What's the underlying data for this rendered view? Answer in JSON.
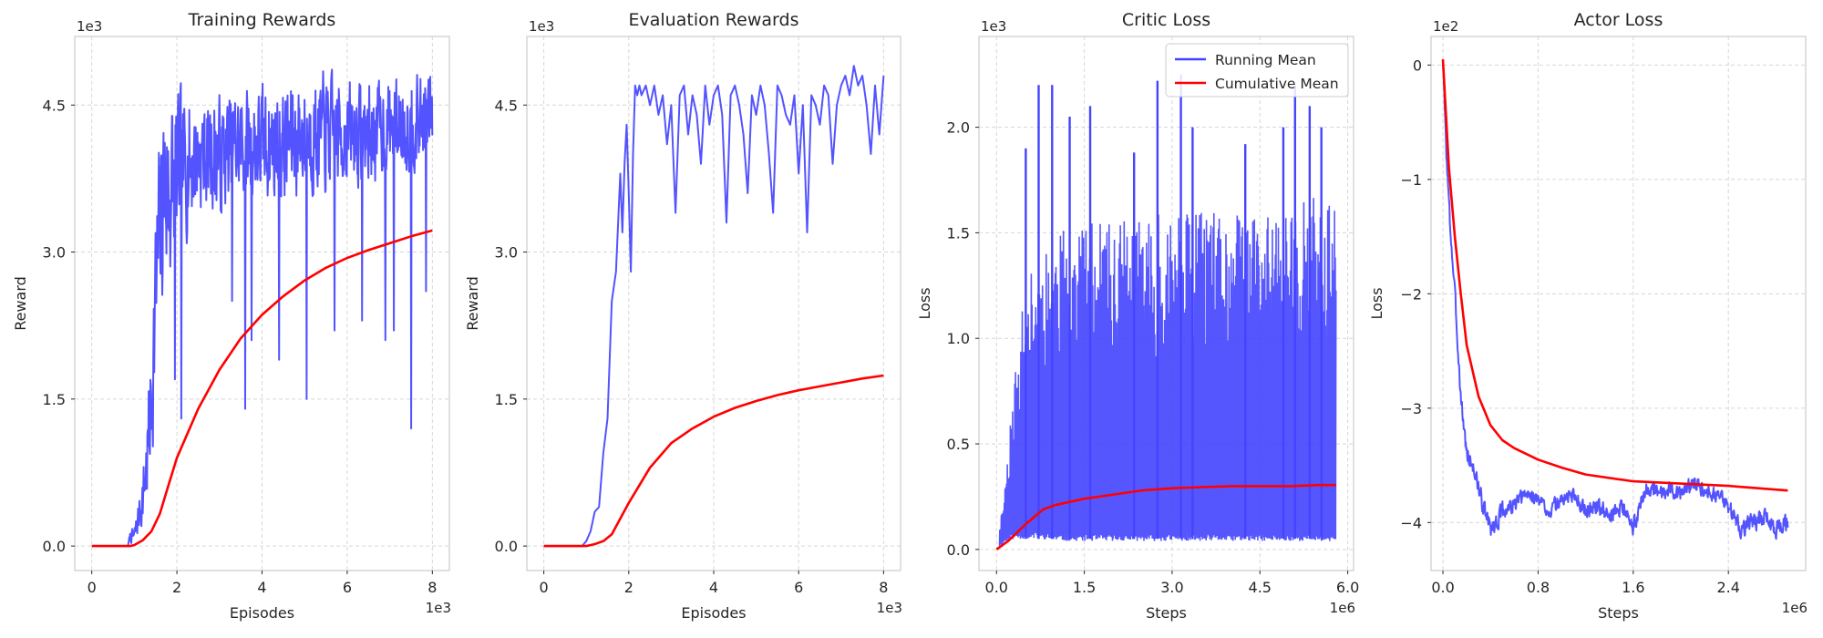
{
  "colors": {
    "running": "#4444ff",
    "cumulative": "#ff0000"
  },
  "legend": {
    "running_label": "Running Mean",
    "cumulative_label": "Cumulative Mean"
  },
  "chart_data": [
    {
      "type": "line",
      "title": "Training Rewards",
      "xlabel": "Episodes",
      "ylabel": "Reward",
      "x_scale_label": "1e3",
      "y_scale_label": "1e3",
      "xlim": [
        -0.4,
        8.4
      ],
      "ylim": [
        -0.25,
        5.2
      ],
      "xticks": [
        {
          "v": 0,
          "label": "0"
        },
        {
          "v": 2,
          "label": "2"
        },
        {
          "v": 4,
          "label": "4"
        },
        {
          "v": 6,
          "label": "6"
        },
        {
          "v": 8,
          "label": "8"
        }
      ],
      "yticks": [
        {
          "v": 0,
          "label": "0.0"
        },
        {
          "v": 1.5,
          "label": "1.5"
        },
        {
          "v": 3.0,
          "label": "3.0"
        },
        {
          "v": 4.5,
          "label": "4.5"
        }
      ],
      "grid": true,
      "legend": false,
      "series": [
        {
          "key": "running",
          "style": "noisy",
          "x": [
            0.85,
            0.9,
            1.0,
            1.1,
            1.2,
            1.3,
            1.4,
            1.5,
            1.6,
            1.7,
            1.8,
            1.9,
            2.0,
            2.2,
            2.5,
            3.0,
            3.5,
            4.0,
            4.5,
            5.0,
            5.5,
            6.0,
            6.5,
            7.0,
            7.5,
            8.0
          ],
          "y": [
            0.0,
            0.1,
            0.1,
            0.3,
            0.5,
            0.9,
            1.5,
            2.5,
            3.2,
            3.7,
            3.6,
            3.7,
            3.8,
            3.9,
            4.0,
            4.0,
            4.1,
            4.1,
            4.1,
            4.2,
            4.2,
            4.2,
            4.2,
            4.3,
            4.3,
            4.4
          ],
          "amp": [
            0.0,
            0.05,
            0.08,
            0.15,
            0.25,
            0.4,
            0.6,
            0.8,
            0.9,
            0.9,
            0.9,
            0.8,
            0.7,
            0.6,
            0.5,
            0.5,
            0.5,
            0.5,
            0.5,
            0.5,
            0.5,
            0.45,
            0.45,
            0.4,
            0.4,
            0.4
          ],
          "spikes": [
            [
              1.95,
              1.7
            ],
            [
              2.1,
              1.3
            ],
            [
              3.05,
              3.4
            ],
            [
              3.3,
              2.5
            ],
            [
              3.6,
              1.4
            ],
            [
              3.75,
              2.1
            ],
            [
              4.4,
              1.9
            ],
            [
              5.05,
              1.5
            ],
            [
              5.7,
              2.2
            ],
            [
              6.35,
              2.3
            ],
            [
              6.9,
              2.1
            ],
            [
              7.1,
              2.2
            ],
            [
              7.5,
              1.2
            ],
            [
              7.85,
              2.6
            ]
          ],
          "hi": 4.95,
          "xmin": 0.85,
          "xmax": 8.0,
          "n": 720,
          "seed": 7
        },
        {
          "key": "cumulative",
          "style": "smooth",
          "x": [
            0,
            0.9,
            1.0,
            1.2,
            1.4,
            1.6,
            1.8,
            2.0,
            2.5,
            3.0,
            3.5,
            4.0,
            4.5,
            5.0,
            5.5,
            6.0,
            6.5,
            7.0,
            7.5,
            8.0
          ],
          "y": [
            0,
            0,
            0.01,
            0.06,
            0.15,
            0.33,
            0.62,
            0.9,
            1.4,
            1.8,
            2.12,
            2.36,
            2.55,
            2.71,
            2.84,
            2.94,
            3.02,
            3.09,
            3.16,
            3.22
          ]
        }
      ]
    },
    {
      "type": "line",
      "title": "Evaluation Rewards",
      "xlabel": "Episodes",
      "ylabel": "Reward",
      "x_scale_label": "1e3",
      "y_scale_label": "1e3",
      "xlim": [
        -0.4,
        8.4
      ],
      "ylim": [
        -0.25,
        5.2
      ],
      "xticks": [
        {
          "v": 0,
          "label": "0"
        },
        {
          "v": 2,
          "label": "2"
        },
        {
          "v": 4,
          "label": "4"
        },
        {
          "v": 6,
          "label": "6"
        },
        {
          "v": 8,
          "label": "8"
        }
      ],
      "yticks": [
        {
          "v": 0,
          "label": "0.0"
        },
        {
          "v": 1.5,
          "label": "1.5"
        },
        {
          "v": 3.0,
          "label": "3.0"
        },
        {
          "v": 4.5,
          "label": "4.5"
        }
      ],
      "grid": true,
      "legend": false,
      "series": [
        {
          "key": "running",
          "style": "polyline",
          "x": [
            0,
            0.9,
            1.0,
            1.1,
            1.2,
            1.3,
            1.4,
            1.5,
            1.6,
            1.7,
            1.8,
            1.85,
            1.9,
            1.95,
            2.0,
            2.05,
            2.1,
            2.15,
            2.2,
            2.25,
            2.3,
            2.4,
            2.5,
            2.6,
            2.7,
            2.8,
            2.9,
            3.0,
            3.1,
            3.2,
            3.3,
            3.4,
            3.5,
            3.6,
            3.7,
            3.8,
            3.9,
            4.0,
            4.1,
            4.2,
            4.3,
            4.4,
            4.5,
            4.6,
            4.7,
            4.8,
            4.9,
            5.0,
            5.1,
            5.2,
            5.3,
            5.4,
            5.5,
            5.6,
            5.7,
            5.8,
            5.9,
            6.0,
            6.1,
            6.2,
            6.3,
            6.4,
            6.5,
            6.6,
            6.7,
            6.8,
            6.9,
            7.0,
            7.1,
            7.2,
            7.3,
            7.4,
            7.5,
            7.6,
            7.7,
            7.8,
            7.9,
            8.0
          ],
          "y": [
            0,
            0,
            0.05,
            0.15,
            0.35,
            0.4,
            0.95,
            1.3,
            2.5,
            2.8,
            3.8,
            3.2,
            3.9,
            4.3,
            3.6,
            2.8,
            4.0,
            4.7,
            4.6,
            4.7,
            4.6,
            4.7,
            4.5,
            4.7,
            4.4,
            4.6,
            4.1,
            4.5,
            3.4,
            4.6,
            4.7,
            4.2,
            4.6,
            4.4,
            3.9,
            4.7,
            4.3,
            4.6,
            4.7,
            4.4,
            3.3,
            4.6,
            4.7,
            4.5,
            4.2,
            3.6,
            4.6,
            4.4,
            4.7,
            4.5,
            4.0,
            3.4,
            4.7,
            4.6,
            4.4,
            4.3,
            4.6,
            3.8,
            4.5,
            3.2,
            4.6,
            4.5,
            4.3,
            4.7,
            4.6,
            3.9,
            4.5,
            4.7,
            4.8,
            4.6,
            4.9,
            4.7,
            4.8,
            4.5,
            4.0,
            4.7,
            4.2,
            4.8
          ]
        },
        {
          "key": "cumulative",
          "style": "smooth",
          "x": [
            0,
            1.0,
            1.2,
            1.4,
            1.6,
            1.8,
            2.0,
            2.5,
            3.0,
            3.5,
            4.0,
            4.5,
            5.0,
            5.5,
            6.0,
            6.5,
            7.0,
            7.5,
            8.0
          ],
          "y": [
            0,
            0,
            0.02,
            0.05,
            0.12,
            0.28,
            0.44,
            0.8,
            1.05,
            1.2,
            1.32,
            1.41,
            1.48,
            1.54,
            1.59,
            1.63,
            1.67,
            1.71,
            1.74
          ]
        }
      ]
    },
    {
      "type": "line",
      "title": "Critic Loss",
      "xlabel": "Steps",
      "ylabel": "Loss",
      "x_scale_label": "1e6",
      "y_scale_label": "1e3",
      "xlim": [
        -0.3,
        6.1
      ],
      "ylim": [
        -0.1,
        2.43
      ],
      "xticks": [
        {
          "v": 0,
          "label": "0.0"
        },
        {
          "v": 1.5,
          "label": "1.5"
        },
        {
          "v": 3.0,
          "label": "3.0"
        },
        {
          "v": 4.5,
          "label": "4.5"
        },
        {
          "v": 6.0,
          "label": "6.0"
        }
      ],
      "yticks": [
        {
          "v": 0,
          "label": "0.0"
        },
        {
          "v": 0.5,
          "label": "0.5"
        },
        {
          "v": 1.0,
          "label": "1.0"
        },
        {
          "v": 1.5,
          "label": "1.5"
        },
        {
          "v": 2.0,
          "label": "2.0"
        }
      ],
      "grid": true,
      "legend": true,
      "series": [
        {
          "key": "running",
          "style": "band",
          "x": [
            0,
            0.1,
            0.2,
            0.3,
            0.4,
            0.5,
            0.7,
            1.0,
            1.5,
            2.0,
            3.0,
            4.0,
            5.0,
            5.8
          ],
          "lo": [
            0,
            0.02,
            0.04,
            0.05,
            0.05,
            0.05,
            0.05,
            0.04,
            0.04,
            0.04,
            0.04,
            0.04,
            0.04,
            0.04
          ],
          "hi": [
            0.05,
            0.2,
            0.5,
            0.8,
            1.05,
            1.25,
            1.4,
            1.5,
            1.55,
            1.55,
            1.6,
            1.6,
            1.65,
            1.7
          ],
          "spikes": [
            [
              0.5,
              1.9
            ],
            [
              0.72,
              2.2
            ],
            [
              0.95,
              2.2
            ],
            [
              1.25,
              2.05
            ],
            [
              1.6,
              2.1
            ],
            [
              2.35,
              1.88
            ],
            [
              2.75,
              2.22
            ],
            [
              3.15,
              2.25
            ],
            [
              3.35,
              2.0
            ],
            [
              4.25,
              1.92
            ],
            [
              4.9,
              2.0
            ],
            [
              5.1,
              2.2
            ],
            [
              5.35,
              2.1
            ],
            [
              5.55,
              2.0
            ]
          ],
          "xmin": 0.05,
          "xmax": 5.8,
          "n": 900,
          "seed": 11
        },
        {
          "key": "cumulative",
          "style": "smooth",
          "x": [
            0,
            0.2,
            0.5,
            0.8,
            1.0,
            1.5,
            2.0,
            2.5,
            3.0,
            3.5,
            4.0,
            4.5,
            5.0,
            5.5,
            5.8
          ],
          "y": [
            0,
            0.04,
            0.12,
            0.19,
            0.21,
            0.24,
            0.26,
            0.28,
            0.29,
            0.295,
            0.3,
            0.3,
            0.3,
            0.305,
            0.305
          ]
        }
      ]
    },
    {
      "type": "line",
      "title": "Actor Loss",
      "xlabel": "Steps",
      "ylabel": "Loss",
      "x_scale_label": "1e6",
      "y_scale_label": "1e2",
      "xlim": [
        -0.1,
        3.05
      ],
      "ylim": [
        -4.42,
        0.25
      ],
      "xticks": [
        {
          "v": 0,
          "label": "0.0"
        },
        {
          "v": 0.8,
          "label": "0.8"
        },
        {
          "v": 1.6,
          "label": "1.6"
        },
        {
          "v": 2.4,
          "label": "2.4"
        }
      ],
      "yticks": [
        {
          "v": 0,
          "label": "0"
        },
        {
          "v": -1,
          "label": "−1"
        },
        {
          "v": -2,
          "label": "−2"
        },
        {
          "v": -3,
          "label": "−3"
        },
        {
          "v": -4,
          "label": "−4"
        }
      ],
      "grid": true,
      "legend": false,
      "series": [
        {
          "key": "running",
          "style": "noisy",
          "x": [
            0,
            0.03,
            0.06,
            0.1,
            0.15,
            0.2,
            0.25,
            0.3,
            0.35,
            0.4,
            0.45,
            0.5,
            0.6,
            0.7,
            0.8,
            0.9,
            1.0,
            1.1,
            1.2,
            1.3,
            1.4,
            1.5,
            1.6,
            1.7,
            1.8,
            1.9,
            2.0,
            2.1,
            2.2,
            2.3,
            2.4,
            2.5,
            2.6,
            2.7,
            2.8,
            2.9
          ],
          "y": [
            0.05,
            -0.8,
            -1.4,
            -2.0,
            -2.9,
            -3.4,
            -3.5,
            -3.7,
            -3.9,
            -4.05,
            -4.0,
            -3.9,
            -3.85,
            -3.75,
            -3.8,
            -3.9,
            -3.8,
            -3.75,
            -3.9,
            -3.85,
            -3.95,
            -3.85,
            -4.05,
            -3.7,
            -3.75,
            -3.7,
            -3.75,
            -3.65,
            -3.7,
            -3.75,
            -3.85,
            -4.05,
            -4.0,
            -3.95,
            -4.05,
            -4.0
          ],
          "amp": [
            0.02,
            0.05,
            0.06,
            0.07,
            0.07,
            0.07,
            0.07,
            0.07,
            0.07,
            0.07,
            0.07,
            0.07,
            0.06,
            0.06,
            0.06,
            0.06,
            0.06,
            0.06,
            0.06,
            0.06,
            0.06,
            0.06,
            0.06,
            0.06,
            0.06,
            0.06,
            0.06,
            0.06,
            0.06,
            0.06,
            0.06,
            0.07,
            0.07,
            0.07,
            0.07,
            0.07
          ],
          "spikes": [],
          "hi": 0.1,
          "xmin": 0,
          "xmax": 2.9,
          "n": 800,
          "seed": 3
        },
        {
          "key": "cumulative",
          "style": "smooth",
          "x": [
            0,
            0.05,
            0.1,
            0.15,
            0.2,
            0.3,
            0.4,
            0.5,
            0.6,
            0.8,
            1.0,
            1.2,
            1.6,
            2.0,
            2.4,
            2.9
          ],
          "y": [
            0.05,
            -0.9,
            -1.5,
            -2.0,
            -2.45,
            -2.9,
            -3.15,
            -3.28,
            -3.35,
            -3.45,
            -3.52,
            -3.58,
            -3.64,
            -3.66,
            -3.68,
            -3.72
          ]
        }
      ]
    }
  ]
}
